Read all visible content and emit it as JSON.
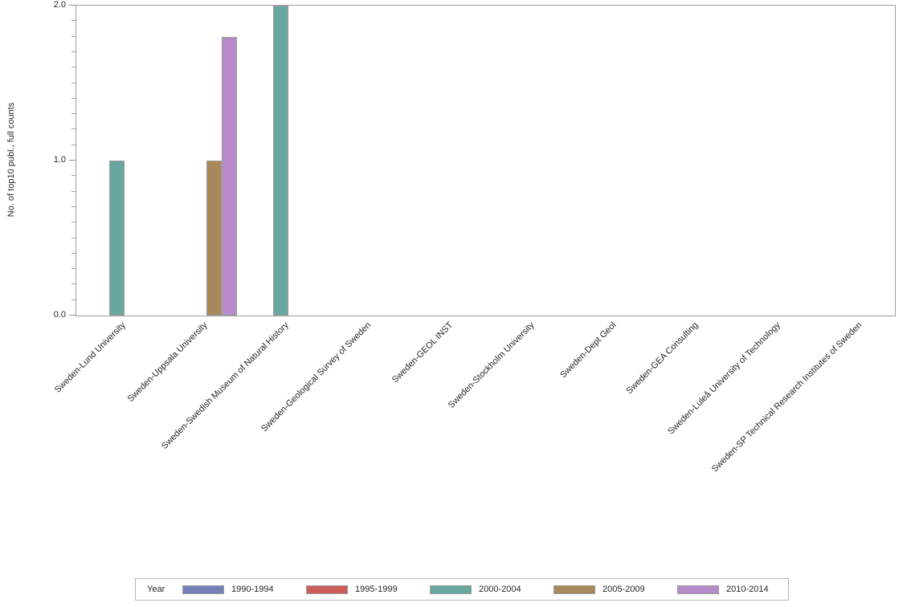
{
  "page": {
    "background_color": "#ffffff",
    "text_color": "#262626"
  },
  "chart_data": {
    "type": "bar",
    "title": "",
    "xlabel": "",
    "ylabel": "No. of top10 publ., full counts",
    "ylim": [
      0,
      2
    ],
    "yticks": [
      "0.0",
      "1.0",
      "2.0"
    ],
    "minor_tick_step": 0.1,
    "grid": false,
    "legend_title": "Year",
    "legend_position": "bottom",
    "axis_color": "#8f8f8f",
    "bar_outline_color": "#9b9b9b",
    "categories": [
      "Sweden-Lund University",
      "Sweden-Uppsala University",
      "Sweden-Swedish Museum of Natural History",
      "Sweden-Geological Survey of Sweden",
      "Sweden-GEOL INST",
      "Sweden-Stockholm University",
      "Sweden-Dept Geol",
      "Sweden-GEA Consulting",
      "Sweden-Luleå University of Technology",
      "Sweden-SP Technical Research Institutes of Sweden"
    ],
    "series": [
      {
        "name": "1990-1994",
        "color": "#7381b6",
        "values": [
          0,
          0,
          0,
          0,
          0,
          0,
          0,
          0,
          0,
          0
        ]
      },
      {
        "name": "1995-1999",
        "color": "#cb5c5a",
        "values": [
          0,
          0,
          0,
          0,
          0,
          0,
          0,
          0,
          0,
          0
        ]
      },
      {
        "name": "2000-2004",
        "color": "#68a6a0",
        "values": [
          1,
          0,
          2,
          0,
          0,
          0,
          0,
          0,
          0,
          0
        ]
      },
      {
        "name": "2005-2009",
        "color": "#a9895c",
        "values": [
          0,
          1,
          0,
          0,
          0,
          0,
          0,
          0,
          0,
          0
        ]
      },
      {
        "name": "2010-2014",
        "color": "#b78bc9",
        "values": [
          0,
          1.8,
          0,
          0,
          0,
          0,
          0,
          0,
          0,
          0
        ]
      }
    ]
  }
}
